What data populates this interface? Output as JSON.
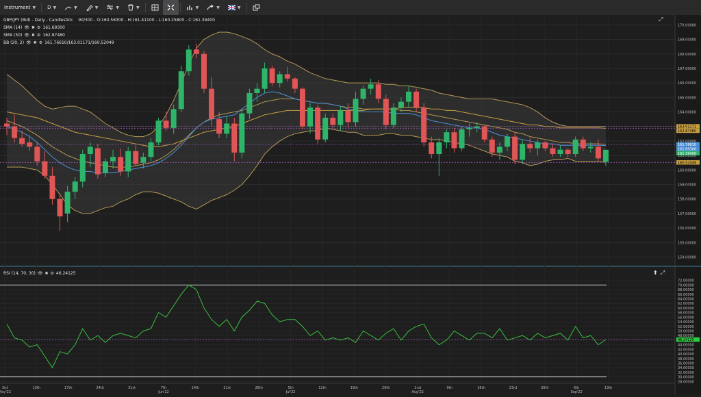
{
  "toolbar": {
    "instrument_label": "Instrument",
    "timeframe_label": "D",
    "items": [
      {
        "name": "instrument-dropdown",
        "label": "Instrument",
        "icon": ""
      },
      {
        "name": "timeframe-dropdown",
        "label": "D",
        "icon": ""
      },
      {
        "name": "drawing-tools-dropdown",
        "label": "",
        "icon": "line-tool-icon"
      },
      {
        "name": "pen-tools-dropdown",
        "label": "",
        "icon": "pen-icon"
      },
      {
        "name": "fib-tools-dropdown",
        "label": "",
        "icon": "fib-icon"
      },
      {
        "name": "delete-tools-dropdown",
        "label": "",
        "icon": "trash-icon"
      },
      {
        "name": "layout-button",
        "label": "",
        "icon": "layout-icon"
      },
      {
        "name": "fit-button",
        "label": "",
        "icon": "expand-icon"
      },
      {
        "name": "chart-type-dropdown",
        "label": "",
        "icon": "bar-chart-icon"
      },
      {
        "name": "share-dropdown",
        "label": "",
        "icon": "share-icon"
      },
      {
        "name": "language-dropdown",
        "label": "",
        "icon": "uk-flag-icon"
      },
      {
        "name": "popout-button",
        "label": "",
        "icon": "popout-icon"
      }
    ]
  },
  "main_panel": {
    "title": "GBP/JPY (Bid) - Daily - Candlestick",
    "ohlc": "90/300 - O:160.56300 - H:161.41100 - L:160.25800 - C:161.39400",
    "indicators": [
      {
        "label": "SMA (14)",
        "value": "161.69300",
        "color": "#4a90d9"
      },
      {
        "label": "SMA (50)",
        "value": "162.87480",
        "color": "#c8a040"
      },
      {
        "label": "BB (20, 2)",
        "value": "161.76610/163.01171/160.52049",
        "color": "#b59a55"
      }
    ],
    "price_labels": [
      {
        "value": "163.01171",
        "bg": "#c8a040",
        "fg": "#000000"
      },
      {
        "value": "162.87480",
        "bg": "#c8a040",
        "fg": "#000000"
      },
      {
        "value": "161.76610",
        "bg": "#4a90d9",
        "fg": "#ffffff"
      },
      {
        "value": "161.69300",
        "bg": "#4a90d9",
        "fg": "#ffffff"
      },
      {
        "value": "161.39400",
        "bg": "#2fb56a",
        "fg": "#ffffff"
      },
      {
        "value": "160.52049",
        "bg": "#c8a040",
        "fg": "#000000"
      }
    ]
  },
  "rsi_panel": {
    "title": "RSI (14, 70, 30)",
    "value": "46.24125",
    "value_label_bg": "#2ecc40"
  },
  "colors": {
    "bull": "#2fb56a",
    "bear": "#e05555",
    "sma14": "#4a90d9",
    "sma50": "#c8a040",
    "bb": "#b59a55",
    "rsi": "#3cc13c"
  },
  "chart_data": [
    {
      "type": "candlestick",
      "title": "GBP/JPY (Bid) - Daily - Candlestick",
      "x_labels": [
        "3rd May'22",
        "10th",
        "17th",
        "24th",
        "31st",
        "7th Jun'22",
        "14th",
        "21st",
        "28th",
        "5th Jul'22",
        "12th",
        "19th",
        "26th",
        "2nd Aug'22",
        "9th",
        "16th",
        "23rd",
        "30th",
        "6th Sep'22",
        "13th"
      ],
      "y_ticks": [
        "170.00000",
        "169.00000",
        "168.00000",
        "167.00000",
        "166.00000",
        "165.00000",
        "164.00000",
        "163.00000",
        "162.00000",
        "161.00000",
        "160.00000",
        "159.00000",
        "158.00000",
        "157.00000",
        "156.00000",
        "155.00000",
        "154.00000"
      ],
      "ylim": [
        153.6,
        170.3
      ],
      "candles": [
        [
          163.2,
          163.6,
          162.4,
          163.0
        ],
        [
          163.0,
          163.8,
          161.9,
          162.2
        ],
        [
          162.2,
          162.7,
          161.6,
          161.8
        ],
        [
          161.9,
          162.4,
          161.3,
          161.6
        ],
        [
          161.6,
          161.9,
          160.3,
          160.6
        ],
        [
          160.6,
          161.3,
          159.4,
          159.6
        ],
        [
          159.6,
          160.2,
          157.6,
          158.0
        ],
        [
          158.0,
          158.4,
          155.8,
          156.8
        ],
        [
          157.0,
          158.9,
          156.4,
          158.5
        ],
        [
          158.5,
          159.5,
          158.0,
          159.2
        ],
        [
          159.2,
          161.4,
          158.8,
          161.1
        ],
        [
          161.1,
          161.9,
          160.2,
          161.6
        ],
        [
          161.5,
          161.8,
          159.4,
          159.7
        ],
        [
          159.8,
          160.8,
          159.5,
          160.6
        ],
        [
          160.6,
          161.4,
          160.1,
          160.9
        ],
        [
          160.9,
          161.5,
          159.6,
          159.9
        ],
        [
          159.9,
          161.6,
          159.5,
          161.3
        ],
        [
          161.3,
          161.7,
          160.3,
          160.4
        ],
        [
          160.5,
          161.2,
          160.1,
          160.9
        ],
        [
          160.9,
          162.2,
          160.6,
          161.9
        ],
        [
          161.9,
          163.6,
          161.7,
          163.4
        ],
        [
          163.4,
          164.0,
          162.7,
          162.9
        ],
        [
          162.9,
          164.5,
          162.5,
          164.2
        ],
        [
          164.2,
          167.2,
          164.0,
          166.8
        ],
        [
          166.8,
          168.6,
          166.5,
          168.3
        ],
        [
          168.3,
          168.7,
          167.7,
          168.0
        ],
        [
          168.0,
          168.2,
          165.3,
          165.6
        ],
        [
          165.6,
          166.4,
          163.0,
          163.5
        ],
        [
          163.5,
          164.0,
          162.2,
          162.5
        ],
        [
          162.5,
          163.7,
          162.2,
          163.2
        ],
        [
          163.2,
          163.6,
          160.6,
          161.2
        ],
        [
          161.2,
          164.2,
          160.8,
          163.9
        ],
        [
          163.9,
          165.6,
          163.5,
          165.3
        ],
        [
          165.3,
          166.0,
          164.7,
          165.6
        ],
        [
          165.6,
          167.4,
          165.3,
          167.0
        ],
        [
          167.0,
          167.2,
          165.8,
          166.0
        ],
        [
          166.0,
          166.8,
          165.7,
          166.6
        ],
        [
          166.6,
          167.1,
          166.1,
          166.3
        ],
        [
          166.3,
          166.4,
          165.3,
          165.6
        ],
        [
          165.6,
          165.7,
          162.8,
          163.0
        ],
        [
          163.0,
          164.6,
          162.5,
          164.3
        ],
        [
          164.3,
          164.5,
          161.8,
          162.1
        ],
        [
          162.1,
          163.9,
          161.9,
          163.6
        ],
        [
          163.6,
          163.9,
          162.9,
          163.1
        ],
        [
          163.1,
          164.4,
          162.7,
          164.1
        ],
        [
          164.1,
          164.6,
          162.9,
          163.3
        ],
        [
          163.3,
          165.4,
          163.0,
          164.9
        ],
        [
          164.9,
          165.8,
          164.5,
          165.6
        ],
        [
          165.6,
          166.3,
          165.2,
          165.9
        ],
        [
          165.9,
          166.2,
          164.6,
          164.9
        ],
        [
          164.9,
          165.2,
          162.8,
          163.1
        ],
        [
          163.1,
          164.6,
          162.9,
          164.3
        ],
        [
          164.3,
          165.0,
          164.0,
          164.7
        ],
        [
          164.7,
          165.8,
          164.3,
          165.4
        ],
        [
          165.4,
          165.6,
          164.0,
          164.3
        ],
        [
          164.3,
          164.6,
          161.6,
          161.9
        ],
        [
          161.9,
          162.3,
          160.8,
          161.1
        ],
        [
          161.1,
          162.2,
          159.6,
          161.9
        ],
        [
          161.9,
          162.8,
          161.5,
          162.6
        ],
        [
          162.6,
          162.9,
          161.2,
          161.5
        ],
        [
          161.5,
          163.0,
          161.3,
          162.8
        ],
        [
          162.8,
          163.2,
          162.3,
          162.9
        ],
        [
          162.9,
          163.3,
          162.6,
          163.0
        ],
        [
          163.0,
          163.1,
          161.9,
          162.1
        ],
        [
          162.1,
          162.3,
          160.9,
          161.2
        ],
        [
          161.2,
          161.9,
          160.7,
          161.6
        ],
        [
          161.6,
          162.5,
          161.3,
          162.3
        ],
        [
          162.3,
          162.6,
          160.4,
          160.7
        ],
        [
          160.7,
          162.1,
          160.4,
          161.8
        ],
        [
          161.8,
          162.2,
          161.2,
          161.5
        ],
        [
          161.5,
          162.1,
          161.0,
          161.9
        ],
        [
          161.9,
          162.0,
          161.3,
          161.5
        ],
        [
          161.5,
          161.8,
          160.9,
          161.1
        ],
        [
          161.1,
          161.7,
          160.9,
          161.4
        ],
        [
          161.4,
          161.5,
          160.9,
          161.1
        ],
        [
          161.1,
          162.3,
          160.9,
          162.1
        ],
        [
          162.1,
          162.3,
          161.3,
          161.5
        ],
        [
          161.5,
          161.9,
          161.2,
          161.6
        ],
        [
          161.6,
          162.1,
          160.6,
          160.8
        ],
        [
          160.56,
          161.41,
          160.26,
          161.39
        ]
      ],
      "sma14": [
        163.0,
        162.8,
        162.6,
        162.3,
        161.9,
        161.4,
        160.9,
        160.5,
        160.2,
        160.0,
        159.9,
        159.9,
        159.8,
        159.8,
        159.8,
        159.9,
        160.0,
        160.1,
        160.2,
        160.3,
        160.5,
        160.8,
        161.2,
        161.7,
        162.3,
        162.9,
        163.3,
        163.5,
        163.6,
        163.7,
        163.8,
        164.2,
        164.6,
        165.0,
        165.3,
        165.4,
        165.3,
        165.1,
        164.9,
        164.8,
        164.7,
        164.6,
        164.6,
        164.5,
        164.4,
        164.2,
        164.1,
        164.0,
        164.0,
        164.0,
        164.0,
        163.9,
        163.9,
        163.9,
        163.8,
        163.6,
        163.4,
        163.3,
        163.2,
        163.1,
        163.0,
        162.9,
        162.9,
        162.8,
        162.6,
        162.4,
        162.3,
        162.2,
        162.1,
        162.0,
        161.9,
        161.8,
        161.8,
        161.7,
        161.7,
        161.7,
        161.7,
        161.7,
        161.7,
        161.69
      ],
      "sma50": [
        164.0,
        163.9,
        163.8,
        163.7,
        163.6,
        163.4,
        163.2,
        163.0,
        162.8,
        162.6,
        162.5,
        162.4,
        162.3,
        162.2,
        162.1,
        162.0,
        161.9,
        161.8,
        161.7,
        161.6,
        161.6,
        161.7,
        161.8,
        162.0,
        162.2,
        162.4,
        162.6,
        162.7,
        162.8,
        162.9,
        163.0,
        163.2,
        163.4,
        163.6,
        163.8,
        163.9,
        164.0,
        164.1,
        164.1,
        164.1,
        164.1,
        164.1,
        164.1,
        164.1,
        164.1,
        164.1,
        164.1,
        164.1,
        164.2,
        164.2,
        164.2,
        164.2,
        164.3,
        164.3,
        164.3,
        164.3,
        164.2,
        164.2,
        164.1,
        164.1,
        164.0,
        163.9,
        163.8,
        163.7,
        163.6,
        163.5,
        163.4,
        163.3,
        163.2,
        163.1,
        163.1,
        163.0,
        163.0,
        162.9,
        162.9,
        162.9,
        162.9,
        162.9,
        162.9,
        162.87
      ],
      "bb_upper": [
        166.6,
        166.2,
        165.8,
        165.3,
        164.8,
        164.4,
        164.2,
        164.3,
        164.4,
        164.4,
        164.2,
        164.0,
        163.6,
        163.2,
        162.9,
        162.6,
        162.4,
        162.3,
        162.3,
        162.5,
        163.0,
        163.8,
        164.8,
        166.0,
        167.3,
        168.4,
        169.0,
        169.3,
        169.5,
        169.5,
        169.4,
        169.2,
        169.0,
        168.7,
        168.3,
        168.0,
        167.8,
        167.5,
        167.3,
        167.0,
        166.7,
        166.5,
        166.3,
        166.2,
        166.1,
        166.0,
        166.0,
        166.0,
        166.0,
        166.0,
        165.9,
        165.9,
        165.8,
        165.8,
        165.7,
        165.6,
        165.5,
        165.3,
        165.2,
        165.1,
        165.0,
        164.9,
        164.9,
        164.9,
        164.9,
        164.8,
        164.7,
        164.6,
        164.5,
        164.3,
        164.0,
        163.6,
        163.3,
        163.1,
        163.0,
        163.0,
        163.0,
        163.0,
        163.0,
        163.01
      ],
      "bb_mid": [
        163.4,
        163.2,
        163.0,
        162.7,
        162.4,
        162.0,
        161.6,
        161.3,
        161.0,
        160.8,
        160.6,
        160.5,
        160.4,
        160.3,
        160.2,
        160.2,
        160.2,
        160.3,
        160.4,
        160.5,
        160.7,
        161.0,
        161.4,
        161.9,
        162.4,
        162.9,
        163.3,
        163.6,
        163.8,
        163.9,
        164.0,
        164.1,
        164.3,
        164.5,
        164.7,
        164.8,
        164.9,
        164.9,
        164.9,
        164.8,
        164.7,
        164.6,
        164.6,
        164.5,
        164.4,
        164.3,
        164.3,
        164.2,
        164.2,
        164.2,
        164.2,
        164.2,
        164.1,
        164.1,
        164.0,
        163.9,
        163.8,
        163.7,
        163.6,
        163.5,
        163.4,
        163.3,
        163.2,
        163.1,
        163.0,
        162.9,
        162.8,
        162.6,
        162.5,
        162.3,
        162.2,
        162.1,
        162.0,
        161.9,
        161.9,
        161.8,
        161.8,
        161.8,
        161.8,
        161.77
      ],
      "bb_lower": [
        160.2,
        160.2,
        160.2,
        160.1,
        160.0,
        159.6,
        159.0,
        158.3,
        157.6,
        157.2,
        157.0,
        157.0,
        157.2,
        157.4,
        157.5,
        157.8,
        158.0,
        158.3,
        158.5,
        158.5,
        158.4,
        158.2,
        158.0,
        157.8,
        157.5,
        157.3,
        157.6,
        157.9,
        158.1,
        158.3,
        158.6,
        159.0,
        159.6,
        160.3,
        161.1,
        161.6,
        162.0,
        162.3,
        162.5,
        162.6,
        162.7,
        162.7,
        162.9,
        162.8,
        162.7,
        162.6,
        162.6,
        162.4,
        162.4,
        162.4,
        162.5,
        162.5,
        162.4,
        162.4,
        162.3,
        162.2,
        162.1,
        162.1,
        162.0,
        161.9,
        161.8,
        161.7,
        161.5,
        161.3,
        161.1,
        161.0,
        160.9,
        160.6,
        160.5,
        160.3,
        160.4,
        160.6,
        160.7,
        160.7,
        160.8,
        160.6,
        160.6,
        160.6,
        160.6,
        160.52
      ]
    },
    {
      "type": "line",
      "title": "RSI (14, 70, 30)",
      "y_ticks": [
        "72.00000",
        "70.00000",
        "68.00000",
        "66.00000",
        "64.00000",
        "62.00000",
        "60.00000",
        "58.00000",
        "56.00000",
        "54.00000",
        "52.00000",
        "50.00000",
        "48.00000",
        "46.00000",
        "44.00000",
        "42.00000",
        "40.00000",
        "38.00000",
        "36.00000",
        "34.00000",
        "32.00000",
        "30.00000",
        "28.00000"
      ],
      "ylim": [
        27.5,
        72.5
      ],
      "levels": [
        70,
        30,
        46.24
      ],
      "series": [
        {
          "values": [
            53,
            47,
            46,
            43,
            44,
            39,
            34,
            41,
            40,
            44,
            51,
            46,
            48,
            45,
            48,
            49,
            48,
            47,
            50,
            51,
            58,
            56,
            61,
            66,
            70,
            68,
            60,
            55,
            52,
            55,
            50,
            56,
            59,
            63,
            62,
            57,
            54,
            55,
            55,
            52,
            48,
            50,
            46,
            47,
            46,
            47,
            45,
            50,
            48,
            46,
            49,
            51,
            46,
            50,
            52,
            53,
            47,
            44,
            46,
            50,
            48,
            46,
            49,
            49,
            47,
            51,
            46,
            47,
            48,
            46,
            49,
            47,
            48,
            49,
            46,
            52,
            47,
            48,
            44,
            46.24
          ]
        }
      ]
    }
  ]
}
